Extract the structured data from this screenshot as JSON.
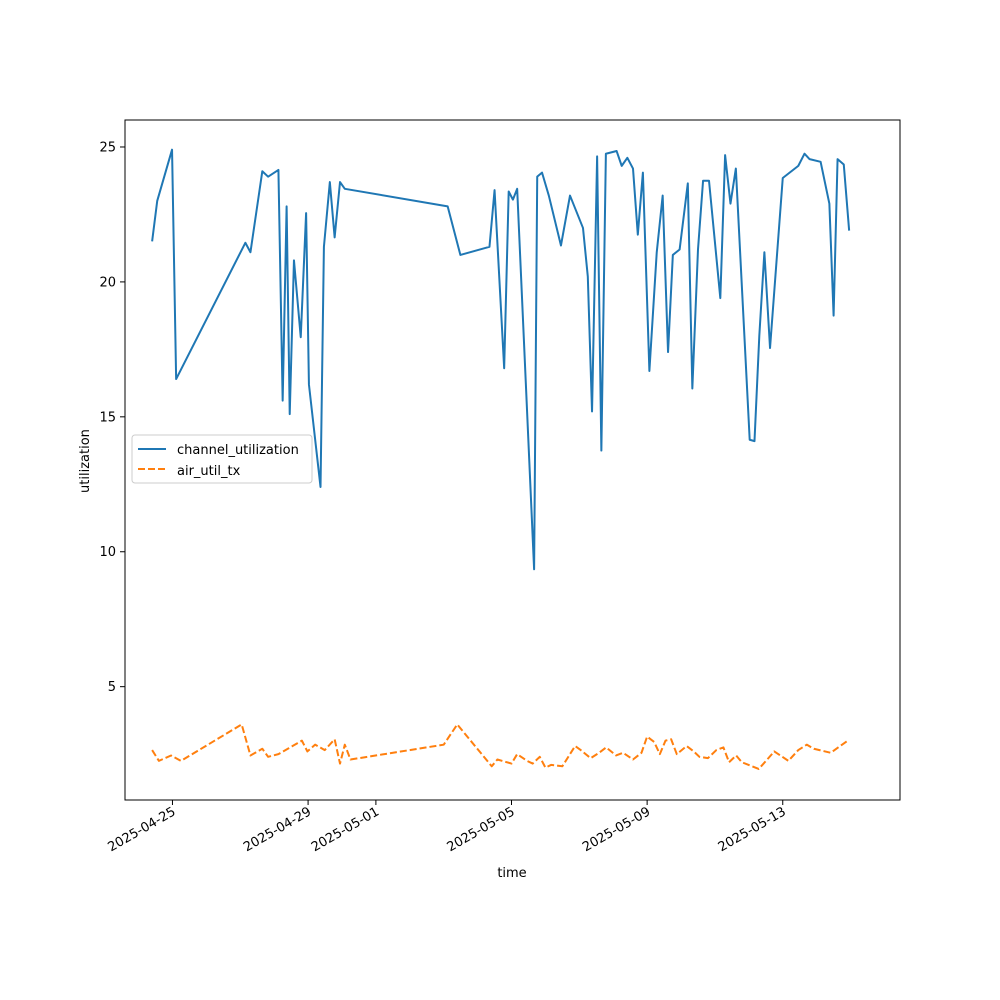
{
  "chart_data": {
    "type": "line",
    "xlabel": "time",
    "ylabel": "utilization",
    "ylim": [
      0.8,
      26.0
    ],
    "xlim": [
      "2025-04-23T14:24",
      "2025-05-16T11:00"
    ],
    "x_tick_labels": [
      "2025-04-25",
      "2025-04-29",
      "2025-05-01",
      "2025-05-05",
      "2025-05-09",
      "2025-05-13"
    ],
    "y_ticks": [
      5,
      10,
      15,
      20,
      25
    ],
    "grid": false,
    "legend_position": "center-left",
    "series": [
      {
        "name": "channel_utilization",
        "color": "#1f77b4",
        "dash": "solid",
        "points": [
          [
            "2025-04-24T09:36",
            21.5
          ],
          [
            "2025-04-24T13:12",
            23.0
          ],
          [
            "2025-04-24T23:42",
            24.9
          ],
          [
            "2025-04-25T02:36",
            16.4
          ],
          [
            "2025-04-27T03:36",
            21.45
          ],
          [
            "2025-04-27T07:12",
            21.1
          ],
          [
            "2025-04-27T15:36",
            24.1
          ],
          [
            "2025-04-27T19:42",
            23.9
          ],
          [
            "2025-04-28T03:00",
            24.15
          ],
          [
            "2025-04-28T06:00",
            15.6
          ],
          [
            "2025-04-28T08:48",
            22.8
          ],
          [
            "2025-04-28T11:00",
            15.1
          ],
          [
            "2025-04-28T14:00",
            20.8
          ],
          [
            "2025-04-28T18:48",
            17.95
          ],
          [
            "2025-04-28T22:36",
            22.55
          ],
          [
            "2025-04-29T00:36",
            16.2
          ],
          [
            "2025-04-29T08:48",
            12.4
          ],
          [
            "2025-04-29T11:12",
            21.3
          ],
          [
            "2025-04-29T15:24",
            23.7
          ],
          [
            "2025-04-29T18:48",
            21.65
          ],
          [
            "2025-04-29T22:36",
            23.7
          ],
          [
            "2025-04-30T02:00",
            23.45
          ],
          [
            "2025-05-03T02:48",
            22.8
          ],
          [
            "2025-05-03T11:48",
            21.0
          ],
          [
            "2025-05-04T08:24",
            21.3
          ],
          [
            "2025-05-04T12:00",
            23.4
          ],
          [
            "2025-05-04T18:48",
            16.8
          ],
          [
            "2025-05-04T22:00",
            23.35
          ],
          [
            "2025-05-05T01:00",
            23.05
          ],
          [
            "2025-05-05T04:00",
            23.45
          ],
          [
            "2025-05-05T16:00",
            9.35
          ],
          [
            "2025-05-05T18:12",
            23.9
          ],
          [
            "2025-05-05T21:36",
            24.05
          ],
          [
            "2025-05-06T02:24",
            23.2
          ],
          [
            "2025-05-06T11:00",
            21.35
          ],
          [
            "2025-05-06T17:24",
            23.2
          ],
          [
            "2025-05-07T02:36",
            22.0
          ],
          [
            "2025-05-07T06:00",
            20.2
          ],
          [
            "2025-05-07T09:00",
            15.2
          ],
          [
            "2025-05-07T12:36",
            24.65
          ],
          [
            "2025-05-07T15:36",
            13.75
          ],
          [
            "2025-05-07T18:48",
            24.75
          ],
          [
            "2025-05-08T02:24",
            24.85
          ],
          [
            "2025-05-08T06:00",
            24.3
          ],
          [
            "2025-05-08T10:00",
            24.6
          ],
          [
            "2025-05-08T14:00",
            24.2
          ],
          [
            "2025-05-08T17:24",
            21.75
          ],
          [
            "2025-05-08T21:00",
            24.05
          ],
          [
            "2025-05-09T01:36",
            16.7
          ],
          [
            "2025-05-09T06:48",
            21.1
          ],
          [
            "2025-05-09T11:00",
            23.2
          ],
          [
            "2025-05-09T14:48",
            17.4
          ],
          [
            "2025-05-09T18:12",
            21.0
          ],
          [
            "2025-05-09T23:00",
            21.2
          ],
          [
            "2025-05-10T04:48",
            23.65
          ],
          [
            "2025-05-10T08:00",
            16.05
          ],
          [
            "2025-05-10T12:00",
            21.2
          ],
          [
            "2025-05-10T15:36",
            23.75
          ],
          [
            "2025-05-10T19:48",
            23.75
          ],
          [
            "2025-05-11T03:48",
            19.4
          ],
          [
            "2025-05-11T07:12",
            24.7
          ],
          [
            "2025-05-11T11:00",
            22.9
          ],
          [
            "2025-05-11T14:48",
            24.2
          ],
          [
            "2025-05-12T00:36",
            14.15
          ],
          [
            "2025-05-12T04:00",
            14.1
          ],
          [
            "2025-05-12T07:24",
            18.0
          ],
          [
            "2025-05-12T11:00",
            21.1
          ],
          [
            "2025-05-12T15:00",
            17.55
          ],
          [
            "2025-05-13T00:00",
            23.85
          ],
          [
            "2025-05-13T11:00",
            24.3
          ],
          [
            "2025-05-13T15:24",
            24.75
          ],
          [
            "2025-05-13T19:00",
            24.55
          ],
          [
            "2025-05-14T02:48",
            24.45
          ],
          [
            "2025-05-14T09:00",
            22.9
          ],
          [
            "2025-05-14T12:00",
            18.75
          ],
          [
            "2025-05-14T14:48",
            24.55
          ],
          [
            "2025-05-14T19:12",
            24.35
          ],
          [
            "2025-05-14T23:00",
            21.9
          ]
        ]
      },
      {
        "name": "air_util_tx",
        "color": "#ff7f0e",
        "dash": "dashed",
        "points": [
          [
            "2025-04-24T09:36",
            2.65
          ],
          [
            "2025-04-24T14:24",
            2.25
          ],
          [
            "2025-04-24T23:00",
            2.45
          ],
          [
            "2025-04-25T06:00",
            2.25
          ],
          [
            "2025-04-27T01:00",
            3.6
          ],
          [
            "2025-04-27T07:12",
            2.45
          ],
          [
            "2025-04-27T15:36",
            2.7
          ],
          [
            "2025-04-27T19:42",
            2.4
          ],
          [
            "2025-04-28T03:00",
            2.5
          ],
          [
            "2025-04-28T13:00",
            2.8
          ],
          [
            "2025-04-28T19:36",
            3.0
          ],
          [
            "2025-04-28T23:30",
            2.6
          ],
          [
            "2025-04-29T05:00",
            2.85
          ],
          [
            "2025-04-29T11:48",
            2.65
          ],
          [
            "2025-04-29T18:48",
            3.05
          ],
          [
            "2025-04-29T22:36",
            2.15
          ],
          [
            "2025-04-30T02:00",
            2.85
          ],
          [
            "2025-04-30T06:00",
            2.3
          ],
          [
            "2025-05-03T00:00",
            2.85
          ],
          [
            "2025-05-03T09:36",
            3.6
          ],
          [
            "2025-05-04T10:00",
            2.05
          ],
          [
            "2025-05-04T14:00",
            2.3
          ],
          [
            "2025-05-05T00:00",
            2.15
          ],
          [
            "2025-05-05T04:00",
            2.5
          ],
          [
            "2025-05-05T11:00",
            2.25
          ],
          [
            "2025-05-05T15:00",
            2.15
          ],
          [
            "2025-05-05T20:00",
            2.4
          ],
          [
            "2025-05-06T00:00",
            2.0
          ],
          [
            "2025-05-06T04:00",
            2.1
          ],
          [
            "2025-05-06T12:00",
            2.05
          ],
          [
            "2025-05-06T21:00",
            2.8
          ],
          [
            "2025-05-07T01:00",
            2.65
          ],
          [
            "2025-05-07T08:00",
            2.35
          ],
          [
            "2025-05-07T14:00",
            2.55
          ],
          [
            "2025-05-07T19:00",
            2.75
          ],
          [
            "2025-05-08T02:00",
            2.45
          ],
          [
            "2025-05-08T07:00",
            2.55
          ],
          [
            "2025-05-08T14:00",
            2.3
          ],
          [
            "2025-05-08T20:00",
            2.55
          ],
          [
            "2025-05-09T00:00",
            3.15
          ],
          [
            "2025-05-09T05:00",
            2.95
          ],
          [
            "2025-05-09T09:00",
            2.5
          ],
          [
            "2025-05-09T13:00",
            3.0
          ],
          [
            "2025-05-09T17:00",
            3.05
          ],
          [
            "2025-05-09T21:00",
            2.5
          ],
          [
            "2025-05-10T04:00",
            2.8
          ],
          [
            "2025-05-10T09:00",
            2.6
          ],
          [
            "2025-05-10T13:00",
            2.4
          ],
          [
            "2025-05-10T19:00",
            2.35
          ],
          [
            "2025-05-11T01:00",
            2.65
          ],
          [
            "2025-05-11T06:00",
            2.75
          ],
          [
            "2025-05-11T10:00",
            2.2
          ],
          [
            "2025-05-11T15:00",
            2.45
          ],
          [
            "2025-05-11T19:00",
            2.2
          ],
          [
            "2025-05-12T07:00",
            1.95
          ],
          [
            "2025-05-12T13:00",
            2.3
          ],
          [
            "2025-05-12T18:00",
            2.6
          ],
          [
            "2025-05-13T04:00",
            2.25
          ],
          [
            "2025-05-13T11:00",
            2.65
          ],
          [
            "2025-05-13T17:00",
            2.85
          ],
          [
            "2025-05-13T22:00",
            2.7
          ],
          [
            "2025-05-14T10:00",
            2.55
          ],
          [
            "2025-05-14T18:00",
            2.85
          ],
          [
            "2025-05-14T22:00",
            3.0
          ]
        ]
      }
    ]
  }
}
